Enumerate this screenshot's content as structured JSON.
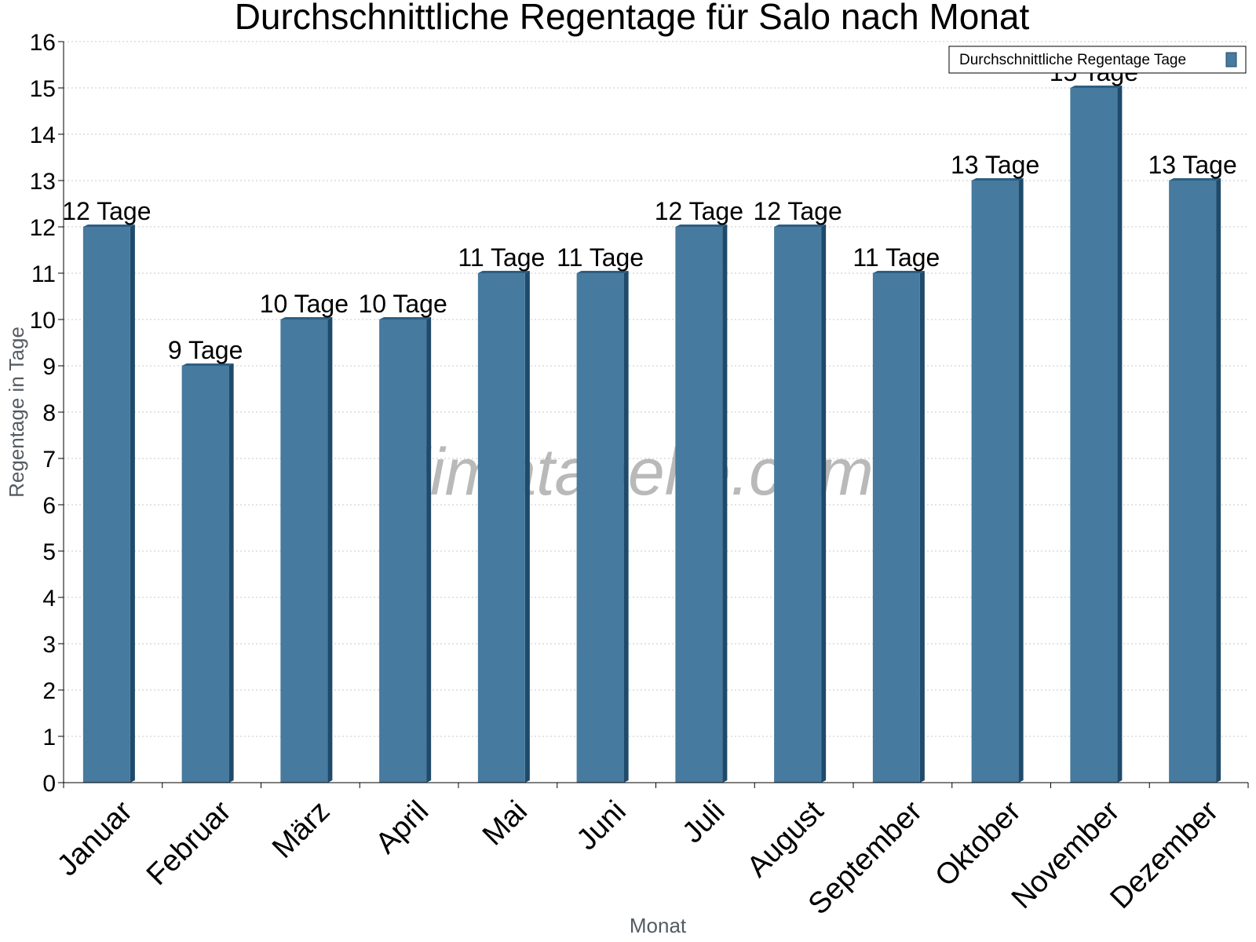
{
  "chart_data": {
    "type": "bar",
    "title": "Durchschnittliche Regentage für Salo nach Monat",
    "xlabel": "Monat",
    "ylabel": "Regentage in Tage",
    "categories": [
      "Januar",
      "Februar",
      "März",
      "April",
      "Mai",
      "Juni",
      "Juli",
      "August",
      "September",
      "Oktober",
      "November",
      "Dezember"
    ],
    "series": [
      {
        "name": "Durchschnittliche Regentage Tage",
        "values": [
          12,
          9,
          10,
          10,
          11,
          11,
          12,
          12,
          11,
          13,
          15,
          13
        ]
      }
    ],
    "data_labels": [
      "12 Tage",
      "9 Tage",
      "10 Tage",
      "10 Tage",
      "11 Tage",
      "11 Tage",
      "12 Tage",
      "12 Tage",
      "11 Tage",
      "13 Tage",
      "15 Tage",
      "13 Tage"
    ],
    "ylim": [
      0,
      16
    ],
    "yticks": [
      0,
      1,
      2,
      3,
      4,
      5,
      6,
      7,
      8,
      9,
      10,
      11,
      12,
      13,
      14,
      15,
      16
    ],
    "grid": true,
    "legend_position": "top-right",
    "watermark": "klimatabelle.com",
    "colors": {
      "bar": "#467a9e",
      "bar_side": "#1e4a6b",
      "bar_top": "#2e5f82",
      "grid": "#c8c8c8",
      "axis": "#000000"
    }
  }
}
